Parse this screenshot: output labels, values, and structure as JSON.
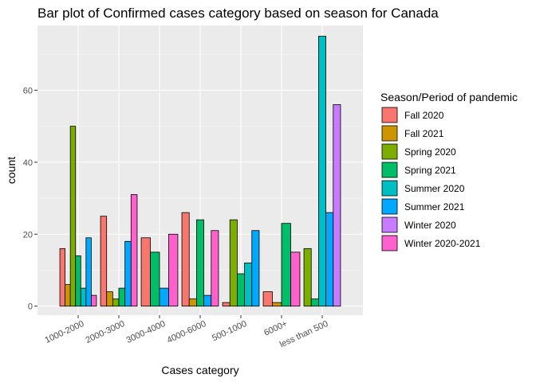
{
  "chart_data": {
    "type": "bar",
    "title": "Bar plot of Confirmed cases category based on season for Canada",
    "xlabel": "Cases category",
    "ylabel": "count",
    "ylim": [
      -2.5,
      78
    ],
    "yticks": [
      0,
      20,
      40,
      60
    ],
    "grid": true,
    "legend_title": "Season/Period of pandemic",
    "legend_position": "right",
    "categories": [
      "1000-2000",
      "2000-3000",
      "3000-4000",
      "4000-6000",
      "500-1000",
      "6000+",
      "less than 500"
    ],
    "series": [
      {
        "name": "Fall 2020",
        "color": "#F8766D",
        "values": [
          16,
          25,
          19,
          26,
          1,
          4,
          0
        ]
      },
      {
        "name": "Fall 2021",
        "color": "#CD9600",
        "values": [
          6,
          4,
          0,
          2,
          0,
          1,
          0
        ]
      },
      {
        "name": "Spring 2020",
        "color": "#7CAE00",
        "values": [
          50,
          2,
          0,
          0,
          24,
          0,
          16
        ]
      },
      {
        "name": "Spring 2021",
        "color": "#00BE67",
        "values": [
          14,
          5,
          15,
          24,
          9,
          23,
          2
        ]
      },
      {
        "name": "Summer 2020",
        "color": "#00BFC4",
        "values": [
          5,
          0,
          0,
          0,
          12,
          0,
          75
        ]
      },
      {
        "name": "Summer 2021",
        "color": "#00A9FF",
        "values": [
          19,
          18,
          5,
          3,
          21,
          0,
          26
        ]
      },
      {
        "name": "Winter 2020",
        "color": "#C77CFF",
        "values": [
          0,
          0,
          0,
          0,
          0,
          0,
          56
        ]
      },
      {
        "name": "Winter 2020-2021",
        "color": "#FF61CC",
        "values": [
          3,
          31,
          20,
          21,
          0,
          15,
          0
        ]
      }
    ]
  }
}
